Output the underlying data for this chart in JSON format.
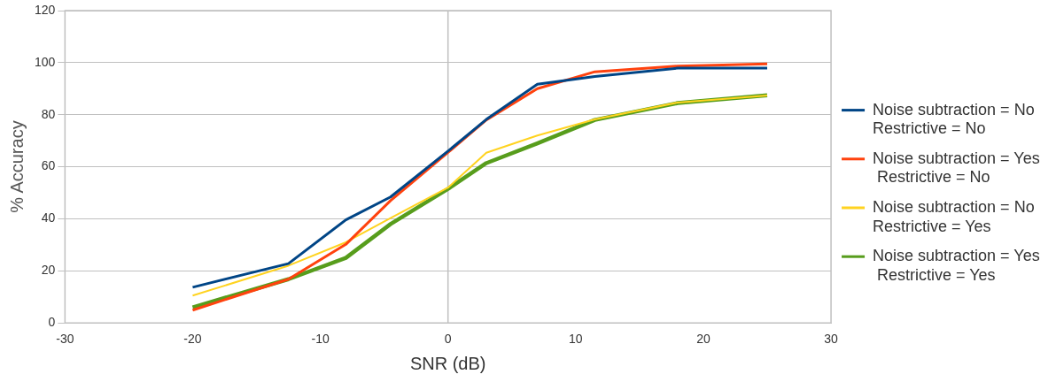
{
  "chart_data": {
    "type": "line",
    "xlabel": "SNR (dB)",
    "ylabel": "% Accuracy",
    "x": [
      -20,
      -12.5,
      -8,
      -4.5,
      0,
      3,
      7,
      11.5,
      18,
      25
    ],
    "xlim": [
      -30,
      30
    ],
    "xticks": [
      -30,
      -20,
      -10,
      0,
      10,
      20,
      30
    ],
    "ylim": [
      0,
      120
    ],
    "yticks": [
      0,
      20,
      40,
      60,
      80,
      100,
      120
    ],
    "grid": "y",
    "legend": "right",
    "marker": "none",
    "line_style": "solid",
    "ref_lines": [
      {
        "axis": "x",
        "value": 0,
        "color": "#c0c0c0"
      }
    ],
    "series": [
      {
        "name": "Noise subtraction = No\nRestrictive = No",
        "color": "#004586",
        "values": [
          13.7,
          22.8,
          39.6,
          48.4,
          66,
          78.2,
          91.7,
          94.7,
          97.9,
          97.9
        ]
      },
      {
        "name": "Noise subtraction = Yes\n Restrictive = No",
        "color": "#ff420e",
        "values": [
          4.9,
          16.8,
          30.2,
          47,
          65.5,
          78,
          90,
          96.5,
          98.7,
          99.5
        ]
      },
      {
        "name": "Noise subtraction = No\nRestrictive = Yes",
        "color": "#ffd320",
        "values": [
          10.5,
          22,
          31,
          40.3,
          52,
          65.4,
          72,
          78.2,
          84.7,
          87.4
        ]
      },
      {
        "name": "Noise subtraction = Yes\n Restrictive = Yes",
        "color": "#579d1c",
        "values": [
          6,
          16.8,
          25,
          38,
          51.5,
          61.4,
          69,
          78,
          84.5,
          87.5
        ]
      }
    ]
  }
}
